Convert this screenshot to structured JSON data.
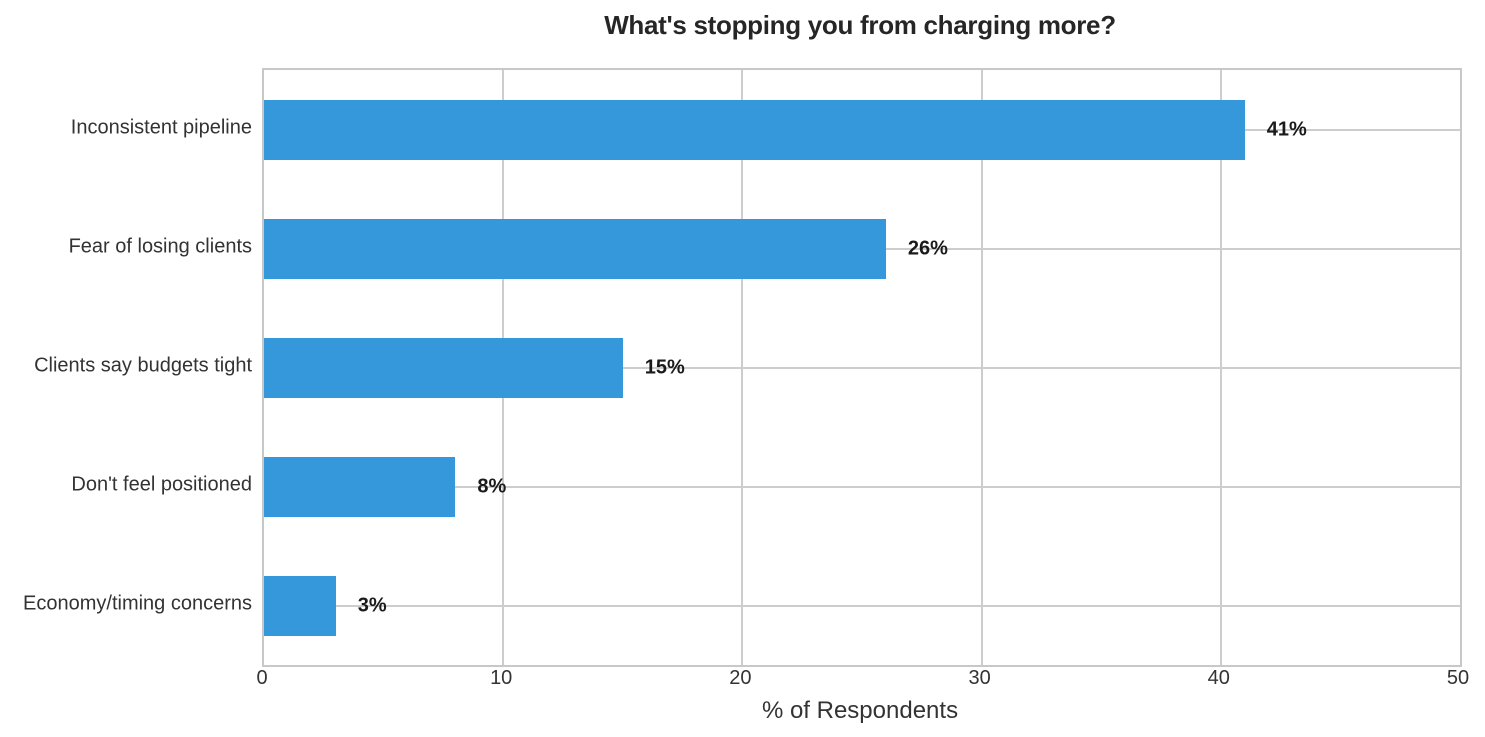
{
  "chart_data": {
    "type": "bar",
    "orientation": "horizontal",
    "title": "What's stopping you from charging more?",
    "xlabel": "% of Respondents",
    "ylabel": "",
    "categories": [
      "Inconsistent pipeline",
      "Fear of losing clients",
      "Clients say budgets tight",
      "Don't feel positioned",
      "Economy/timing concerns"
    ],
    "values": [
      41,
      26,
      15,
      8,
      3
    ],
    "value_labels": [
      "41%",
      "26%",
      "15%",
      "8%",
      "3%"
    ],
    "xlim": [
      0,
      50
    ],
    "x_ticks": [
      0,
      10,
      20,
      30,
      40,
      50
    ],
    "grid": true,
    "legend_position": "none",
    "colors": {
      "bar": "#3498db",
      "grid": "#cdcdcd",
      "spine": "#c8c8c8",
      "title_text": "#262626",
      "axis_text": "#333333",
      "value_text": "#1a1a1a",
      "background": "#ffffff"
    }
  }
}
